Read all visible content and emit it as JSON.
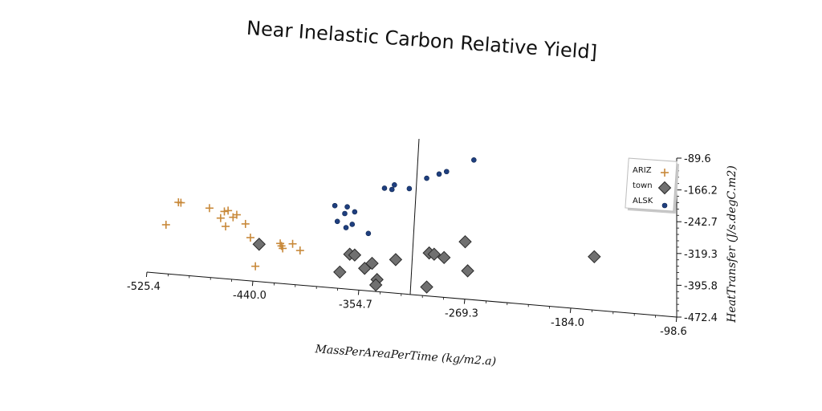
{
  "chart_data": {
    "type": "scatter",
    "title": "Near Inelastic Carbon Relative Yield]",
    "xlabel": "MassPerAreaPerTime (kg/m2.a)",
    "ylabel": "HeatTransfer (J/s.degC.m2)",
    "xlim": [
      -525.4,
      -98.6
    ],
    "ylim": [
      -472.4,
      -89.6
    ],
    "x_ticks": [
      "-525.4",
      "-440.0",
      "-354.7",
      "-269.3",
      "-184.0",
      "-98.6"
    ],
    "y_ticks": [
      "-89.6",
      "-166.2",
      "-242.7",
      "-319.3",
      "-395.8",
      "-472.4"
    ],
    "grid": false,
    "legend_position": "right",
    "series": [
      {
        "name": "ARIZ",
        "marker": "plus",
        "color": "#c8893a",
        "points": [
          [
            -510,
            -250
          ],
          [
            -500,
            -196
          ],
          [
            -498,
            -197
          ],
          [
            -475,
            -210
          ],
          [
            -466,
            -234
          ],
          [
            -463,
            -218
          ],
          [
            -462,
            -254
          ],
          [
            -460,
            -216
          ],
          [
            -456,
            -232
          ],
          [
            -453,
            -226
          ],
          [
            -446,
            -248
          ],
          [
            -442,
            -281
          ],
          [
            -438,
            -350
          ],
          [
            -418,
            -295
          ],
          [
            -417,
            -301
          ],
          [
            -416,
            -307
          ],
          [
            -408,
            -296
          ],
          [
            -402,
            -312
          ]
        ]
      },
      {
        "name": "town",
        "marker": "diamond",
        "color": "#707070",
        "points": [
          [
            -435,
            -297
          ],
          [
            -370,
            -364
          ],
          [
            -362,
            -321
          ],
          [
            -358,
            -323
          ],
          [
            -350,
            -355
          ],
          [
            -344,
            -343
          ],
          [
            -340,
            -382
          ],
          [
            -341,
            -395
          ],
          [
            -325,
            -334
          ],
          [
            -300,
            -400
          ],
          [
            -298,
            -318
          ],
          [
            -294,
            -321
          ],
          [
            -286,
            -329
          ],
          [
            -269,
            -291
          ],
          [
            -267,
            -361
          ],
          [
            -165,
            -327
          ]
        ]
      },
      {
        "name": "ALSK",
        "marker": "circle",
        "color": "#1f3f7f",
        "points": [
          [
            -374,
            -204
          ],
          [
            -372,
            -242
          ],
          [
            -366,
            -223
          ],
          [
            -365,
            -257
          ],
          [
            -364,
            -207
          ],
          [
            -360,
            -249
          ],
          [
            -358,
            -219
          ],
          [
            -347,
            -271
          ],
          [
            -334,
            -162
          ],
          [
            -328,
            -165
          ],
          [
            -326,
            -154
          ],
          [
            -314,
            -163
          ],
          [
            -300,
            -138
          ],
          [
            -290,
            -128
          ],
          [
            -284,
            -122
          ],
          [
            -262,
            -94
          ]
        ]
      }
    ]
  }
}
